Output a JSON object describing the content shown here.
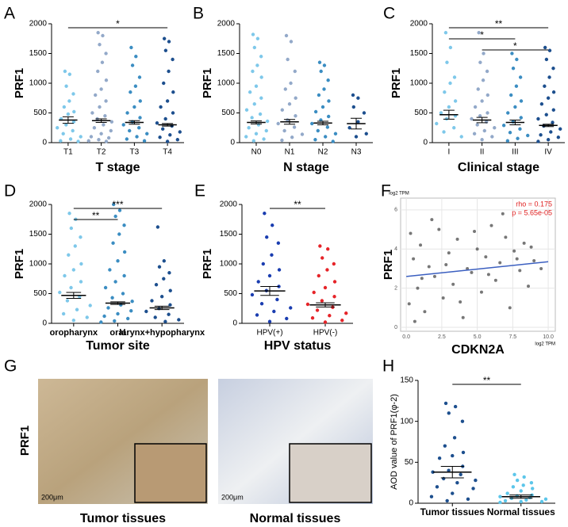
{
  "chart_data": [
    {
      "type": "dotplot",
      "panel": "A",
      "ylabel": "PRF1",
      "xlabel": "T stage",
      "ylim": [
        0,
        2000
      ],
      "yticks": [
        0,
        500,
        1000,
        1500,
        2000
      ],
      "groups": [
        {
          "name": "T1",
          "color": "#7ec8ea",
          "mean": 380,
          "sem": 55,
          "values": [
            1200,
            1150,
            950,
            820,
            700,
            600,
            520,
            480,
            400,
            350,
            300,
            250,
            200,
            150,
            100,
            60,
            30,
            20
          ]
        },
        {
          "name": "T2",
          "color": "#93a9c9",
          "mean": 370,
          "sem": 30,
          "values": [
            1850,
            1800,
            1650,
            1500,
            1350,
            1200,
            1050,
            900,
            800,
            700,
            600,
            500,
            450,
            400,
            350,
            300,
            250,
            200,
            150,
            100,
            80,
            50,
            30,
            20
          ]
        },
        {
          "name": "T3",
          "color": "#3b8dc2",
          "mean": 340,
          "sem": 30,
          "values": [
            1600,
            1450,
            1300,
            1100,
            950,
            850,
            700,
            600,
            500,
            420,
            350,
            300,
            250,
            200,
            150,
            100,
            60,
            30
          ]
        },
        {
          "name": "T4",
          "color": "#1d4f8e",
          "mean": 300,
          "sem": 22,
          "values": [
            1750,
            1700,
            1550,
            1400,
            1200,
            1000,
            850,
            700,
            600,
            500,
            400,
            330,
            280,
            230,
            180,
            130,
            90,
            50,
            20
          ]
        }
      ],
      "brackets": [
        {
          "from": 0,
          "to": 3,
          "label": "*"
        }
      ]
    },
    {
      "type": "dotplot",
      "panel": "B",
      "ylabel": "PRF1",
      "xlabel": "N stage",
      "ylim": [
        0,
        2000
      ],
      "yticks": [
        0,
        500,
        1000,
        1500,
        2000
      ],
      "groups": [
        {
          "name": "N0",
          "color": "#7ec8ea",
          "mean": 340,
          "sem": 25,
          "values": [
            1820,
            1750,
            1600,
            1450,
            1300,
            1200,
            1100,
            950,
            850,
            750,
            650,
            550,
            480,
            420,
            360,
            300,
            250,
            200,
            150,
            100,
            60,
            30
          ]
        },
        {
          "name": "N1",
          "color": "#93a9c9",
          "mean": 350,
          "sem": 40,
          "values": [
            1800,
            1700,
            1400,
            1200,
            1000,
            900,
            750,
            650,
            550,
            450,
            380,
            320,
            260,
            200,
            140,
            90,
            40
          ]
        },
        {
          "name": "N2",
          "color": "#3b8dc2",
          "mean": 330,
          "sem": 30,
          "values": [
            1350,
            1300,
            1200,
            1050,
            900,
            800,
            700,
            600,
            520,
            440,
            380,
            320,
            260,
            200,
            150,
            100,
            50,
            20
          ]
        },
        {
          "name": "N3",
          "color": "#1d4f8e",
          "mean": 320,
          "sem": 90,
          "values": [
            800,
            750,
            600,
            500,
            350,
            250,
            150,
            100
          ]
        }
      ],
      "brackets": []
    },
    {
      "type": "dotplot",
      "panel": "C",
      "ylabel": "PRF1",
      "xlabel": "Clinical stage",
      "ylim": [
        0,
        2000
      ],
      "yticks": [
        0,
        500,
        1000,
        1500,
        2000
      ],
      "groups": [
        {
          "name": "I",
          "color": "#7ec8ea",
          "mean": 470,
          "sem": 75,
          "values": [
            1850,
            1600,
            1350,
            1100,
            1000,
            850,
            700,
            600,
            500,
            450,
            400,
            320,
            250,
            180,
            100
          ]
        },
        {
          "name": "II",
          "color": "#93a9c9",
          "mean": 380,
          "sem": 45,
          "values": [
            1850,
            1500,
            1350,
            1200,
            1050,
            900,
            800,
            700,
            600,
            500,
            450,
            400,
            350,
            300,
            250,
            200,
            150,
            100,
            50
          ]
        },
        {
          "name": "III",
          "color": "#3b8dc2",
          "mean": 340,
          "sem": 40,
          "values": [
            1500,
            1400,
            1250,
            1100,
            950,
            800,
            700,
            600,
            500,
            420,
            350,
            290,
            230,
            170,
            120,
            70,
            30
          ]
        },
        {
          "name": "IV",
          "color": "#1d4f8e",
          "mean": 290,
          "sem": 20,
          "values": [
            1600,
            1550,
            1400,
            1250,
            1100,
            950,
            850,
            750,
            650,
            550,
            470,
            400,
            340,
            280,
            230,
            180,
            130,
            90,
            50,
            20
          ]
        }
      ],
      "brackets": [
        {
          "from": 0,
          "to": 3,
          "label": "**"
        },
        {
          "from": 0,
          "to": 2,
          "label": "*"
        },
        {
          "from": 1,
          "to": 3,
          "label": "*"
        }
      ]
    },
    {
      "type": "dotplot",
      "panel": "D",
      "ylabel": "PRF1",
      "xlabel": "Tumor site",
      "ylim": [
        0,
        2000
      ],
      "yticks": [
        0,
        500,
        1000,
        1500,
        2000
      ],
      "groups": [
        {
          "name": "oropharynx",
          "color": "#7ec8ea",
          "mean": 470,
          "sem": 50,
          "values": [
            1850,
            1750,
            1600,
            1450,
            1300,
            1150,
            1000,
            900,
            800,
            700,
            600,
            520,
            450,
            380,
            300,
            230,
            160,
            100,
            50
          ]
        },
        {
          "name": "oral",
          "color": "#3b8dc2",
          "mean": 340,
          "sem": 22,
          "values": [
            2000,
            1900,
            1800,
            1650,
            1500,
            1350,
            1200,
            1050,
            900,
            800,
            700,
            600,
            500,
            430,
            370,
            310,
            260,
            210,
            160,
            120,
            80,
            40,
            20
          ]
        },
        {
          "name": "larynx+hypopharynx",
          "color": "#1d4f8e",
          "mean": 260,
          "sem": 28,
          "values": [
            1620,
            1050,
            950,
            850,
            750,
            650,
            550,
            450,
            380,
            310,
            250,
            200,
            150,
            100,
            60,
            30
          ]
        }
      ],
      "brackets": [
        {
          "from": 0,
          "to": 2,
          "label": "***"
        },
        {
          "from": 0,
          "to": 1,
          "label": "**"
        }
      ]
    },
    {
      "type": "dotplot",
      "panel": "E",
      "ylabel": "PRF1",
      "xlabel": "HPV status",
      "ylim": [
        0,
        2000
      ],
      "yticks": [
        0,
        500,
        1000,
        1500,
        2000
      ],
      "groups": [
        {
          "name": "HPV(+)",
          "color": "#1a3db0",
          "mean": 545,
          "sem": 75,
          "values": [
            1850,
            1650,
            1450,
            1350,
            1150,
            1000,
            900,
            800,
            700,
            620,
            550,
            480,
            400,
            330,
            260,
            200,
            140,
            80,
            30
          ]
        },
        {
          "name": "HPV(-)",
          "color": "#e62429",
          "mean": 310,
          "sem": 35,
          "values": [
            1300,
            1250,
            1100,
            1000,
            900,
            800,
            700,
            600,
            520,
            450,
            380,
            320,
            270,
            220,
            170,
            130,
            90,
            50,
            20
          ]
        }
      ],
      "brackets": [
        {
          "from": 0,
          "to": 1,
          "label": "**"
        }
      ]
    },
    {
      "type": "scatter",
      "panel": "F",
      "ylabel": "PRF1",
      "xlabel": "CDKN2A",
      "x_unit": "log2 TPM",
      "y_unit": "log2 TPM",
      "color": "#555555",
      "xlim": [
        -0.4,
        10.5
      ],
      "ylim": [
        -0.2,
        6.6
      ],
      "xticks": [
        {
          "value": 0,
          "label": "0.0"
        },
        {
          "value": 2.5,
          "label": "2.5"
        },
        {
          "value": 5,
          "label": "5.0"
        },
        {
          "value": 7.5,
          "label": "7.5"
        },
        {
          "value": 10,
          "label": "10.0"
        }
      ],
      "yticks": [
        0,
        2,
        4,
        6
      ],
      "x": [
        0.2,
        0.5,
        0.8,
        1.0,
        1.3,
        1.6,
        2.0,
        2.3,
        2.6,
        3.0,
        3.3,
        3.6,
        4.0,
        4.3,
        4.6,
        5.0,
        5.3,
        5.6,
        6.0,
        6.3,
        6.6,
        7.0,
        7.3,
        7.6,
        8.0,
        8.3,
        8.6,
        9.0,
        0.3,
        0.6,
        1.1,
        1.8,
        2.8,
        3.8,
        4.8,
        5.8,
        6.8,
        7.8,
        8.8,
        9.5
      ],
      "y": [
        1.2,
        3.5,
        2.0,
        4.2,
        0.8,
        3.1,
        2.6,
        5.0,
        1.5,
        3.8,
        2.2,
        4.5,
        0.5,
        3.0,
        2.8,
        4.0,
        1.8,
        3.6,
        5.2,
        2.4,
        3.3,
        4.6,
        1.0,
        3.9,
        2.9,
        4.3,
        2.1,
        3.4,
        4.8,
        0.3,
        2.5,
        5.5,
        3.2,
        1.3,
        4.9,
        2.7,
        5.8,
        3.5,
        4.1,
        3.0
      ],
      "fit": {
        "color": "#3b5fc0",
        "x": [
          0,
          10
        ],
        "y": [
          2.6,
          3.35
        ]
      },
      "annotations": [
        "rho = 0.175",
        "p = 5.65e-05"
      ],
      "annotation_color": "#e02020"
    },
    {
      "type": "dotplot",
      "panel": "H",
      "ylabel": "AOD value of PRF1(φ-2)",
      "ylim": [
        0,
        150
      ],
      "yticks": [
        0,
        50,
        100,
        150
      ],
      "groups": [
        {
          "name": "Tumor tissues",
          "color": "#1d4f8e",
          "mean": 38,
          "sem": 7,
          "values": [
            122,
            118,
            110,
            100,
            80,
            70,
            62,
            58,
            55,
            45,
            40,
            38,
            35,
            30,
            28,
            25,
            20,
            18,
            12,
            8,
            5,
            3
          ]
        },
        {
          "name": "Normal tissues",
          "color": "#5cc6ea",
          "mean": 8,
          "sem": 2,
          "values": [
            35,
            32,
            28,
            25,
            22,
            20,
            18,
            15,
            12,
            10,
            9,
            8,
            7,
            6,
            5,
            4,
            3,
            2,
            2,
            1
          ]
        }
      ],
      "brackets": [
        {
          "from": 0,
          "to": 1,
          "label": "**"
        }
      ]
    }
  ],
  "panel_g": {
    "panel": "G",
    "ylabel": "PRF1",
    "images": [
      {
        "caption": "Tumor tissues",
        "scale": "200μm"
      },
      {
        "caption": "Normal tissues",
        "scale": "200μm"
      }
    ]
  }
}
